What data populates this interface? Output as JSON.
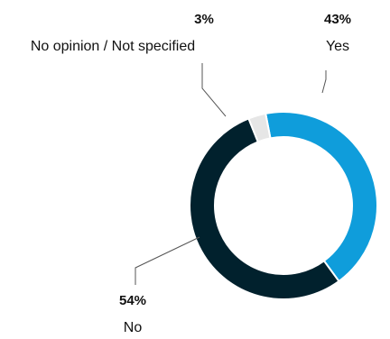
{
  "chart_data": {
    "type": "pie",
    "donut": true,
    "labels": [
      "Yes",
      "No",
      "No opinion / Not specified"
    ],
    "values": [
      43,
      54,
      3
    ],
    "value_labels": [
      "43%",
      "54%",
      "3%"
    ],
    "colors": [
      "#0f9ddb",
      "#01212d",
      "#e6e6e6"
    ],
    "title": "",
    "legend": "none"
  }
}
